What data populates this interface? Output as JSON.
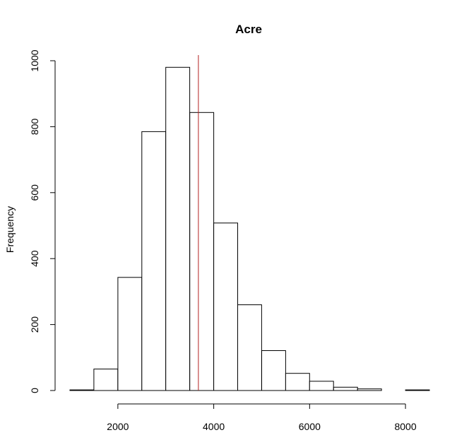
{
  "chart_data": {
    "type": "bar",
    "subtype": "histogram",
    "title": "Acre",
    "xlabel": "",
    "ylabel": "Frequency",
    "bin_edges": [
      1000,
      1500,
      2000,
      2500,
      3000,
      3500,
      4000,
      4500,
      5000,
      5500,
      6000,
      6500,
      7000,
      7500,
      8000,
      8500
    ],
    "values": [
      2,
      65,
      343,
      785,
      980,
      843,
      508,
      260,
      121,
      52,
      28,
      10,
      5,
      0,
      2
    ],
    "xlim": [
      1000,
      8500
    ],
    "ylim": [
      0,
      1000
    ],
    "x_ticks": [
      2000,
      4000,
      6000,
      8000
    ],
    "y_ticks": [
      0,
      200,
      400,
      600,
      800,
      1000
    ],
    "reference_line": {
      "x": 3680,
      "color": "#b22222"
    },
    "grid": false,
    "legend": "none"
  }
}
